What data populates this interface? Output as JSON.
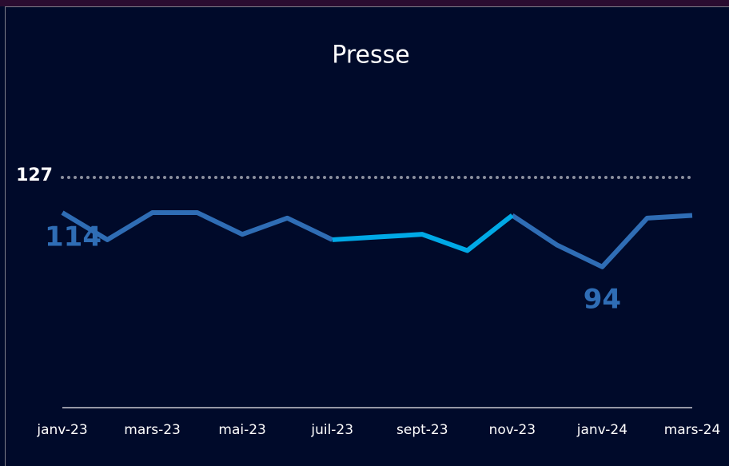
{
  "chart_data": {
    "type": "line",
    "title": "Presse",
    "categories": [
      "janv-23",
      null,
      "mars-23",
      null,
      "mai-23",
      null,
      "juil-23",
      null,
      "sept-23",
      null,
      "nov-23",
      null,
      "janv-24",
      null,
      "mars-24"
    ],
    "values": [
      114,
      104,
      114,
      114,
      106,
      112,
      104,
      105,
      106,
      100,
      113,
      102,
      94,
      112,
      113
    ],
    "color": "#2f6db5",
    "highlight_color": "#00a9e6",
    "highlight_range": [
      6,
      10
    ],
    "labeled_points": [
      0,
      12
    ],
    "reference_line": {
      "value": 127,
      "color": "#8a8f9e"
    },
    "ylim": [
      42,
      130
    ]
  }
}
